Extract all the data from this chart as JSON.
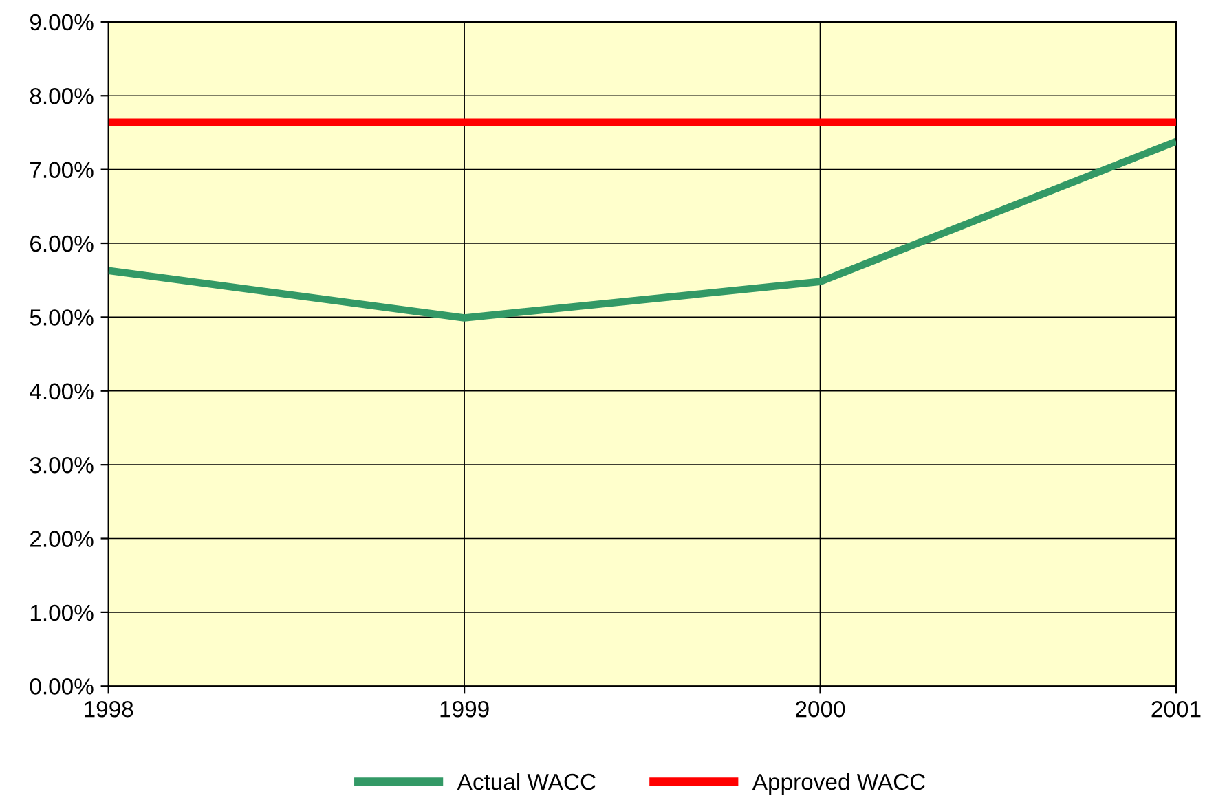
{
  "chart_data": {
    "type": "line",
    "x": [
      1998,
      1999,
      2000,
      2001
    ],
    "series": [
      {
        "name": "Actual WACC",
        "color": "#339966",
        "values": [
          5.63,
          4.99,
          5.48,
          7.38
        ]
      },
      {
        "name": "Approved WACC",
        "color": "#ff0000",
        "values": [
          7.64,
          7.64,
          7.64,
          7.64
        ]
      }
    ],
    "xlim": [
      1998,
      2001
    ],
    "xticks": [
      1998,
      1999,
      2000,
      2001
    ],
    "ylim": [
      0,
      9
    ],
    "yticks": [
      {
        "value": 0,
        "label": "0.00%"
      },
      {
        "value": 1,
        "label": "1.00%"
      },
      {
        "value": 2,
        "label": "2.00%"
      },
      {
        "value": 3,
        "label": "3.00%"
      },
      {
        "value": 4,
        "label": "4.00%"
      },
      {
        "value": 5,
        "label": "5.00%"
      },
      {
        "value": 6,
        "label": "6.00%"
      },
      {
        "value": 7,
        "label": "7.00%"
      },
      {
        "value": 8,
        "label": "8.00%"
      },
      {
        "value": 9,
        "label": "9.00%"
      }
    ],
    "grid": true,
    "legend": "bottom",
    "marker": "none",
    "line_style": "solid"
  }
}
